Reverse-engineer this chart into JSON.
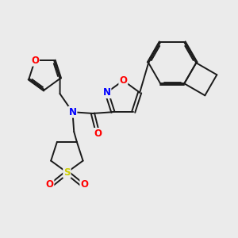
{
  "background_color": "#ebebeb",
  "bond_color": "#1a1a1a",
  "atom_colors": {
    "O": "#ff0000",
    "N": "#0000ff",
    "S": "#cccc00"
  },
  "lw": 1.4,
  "dbg": 0.06,
  "fs": 8.5
}
